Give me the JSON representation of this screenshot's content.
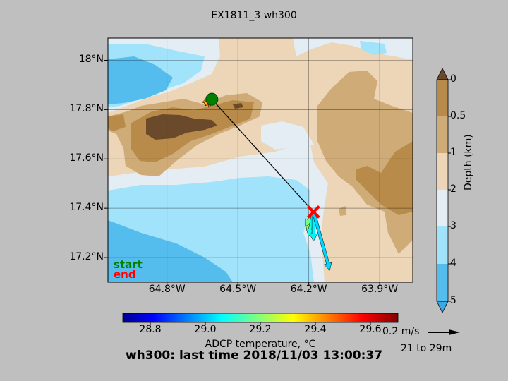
{
  "title": "EX1811_3 wh300",
  "footer": "wh300: last time 2018/11/03 13:00:37",
  "legend": {
    "start": "start",
    "end": "end",
    "start_color": "#008000",
    "end_color": "#ff0000"
  },
  "scale_arrow": {
    "label": "0.2 m/s",
    "depth_range": "21 to 29m"
  },
  "map": {
    "xlim": [
      -65.05,
      -63.76
    ],
    "ylim": [
      17.1,
      18.09
    ],
    "x_ticks": [
      {
        "value": -64.8,
        "label": "64.8°W"
      },
      {
        "value": -64.5,
        "label": "64.5°W"
      },
      {
        "value": -64.2,
        "label": "64.2°W"
      },
      {
        "value": -63.9,
        "label": "63.9°W"
      }
    ],
    "y_ticks": [
      {
        "value": 17.2,
        "label": "17.2°N"
      },
      {
        "value": 17.4,
        "label": "17.4°N"
      },
      {
        "value": 17.6,
        "label": "17.6°N"
      },
      {
        "value": 17.8,
        "label": "17.8°N"
      },
      {
        "value": 18.0,
        "label": "18°N"
      }
    ],
    "grid": true
  },
  "depth_colorbar": {
    "title": "Depth (km)",
    "ticks": [
      "0",
      "0.5",
      "1",
      "2",
      "3",
      "4",
      "5"
    ],
    "colors": [
      "#6b4a2b",
      "#b98b4a",
      "#cfab77",
      "#edd5b8",
      "#e3edf3",
      "#a0e3fa",
      "#54bdee",
      "#3aa9e3"
    ]
  },
  "temp_colorbar": {
    "title": "ADCP temperature, °C",
    "range": [
      28.7,
      29.7
    ],
    "ticks": [
      "28.8",
      "29.0",
      "29.2",
      "29.4",
      "29.6"
    ]
  },
  "chart_data": {
    "type": "scatter",
    "title": "EX1811_3 wh300",
    "xlabel": "",
    "ylabel": "",
    "track": {
      "start": {
        "lon": -64.61,
        "lat": 17.842
      },
      "end": {
        "lon": -64.18,
        "lat": 17.385
      }
    },
    "vectors": [
      {
        "lon": -64.61,
        "lat": 17.842,
        "u": -0.06,
        "v": -0.02,
        "temp": 29.42
      },
      {
        "lon": -64.61,
        "lat": 17.842,
        "u": -0.04,
        "v": -0.04,
        "temp": 29.45
      },
      {
        "lon": -64.61,
        "lat": 17.842,
        "u": -0.02,
        "v": -0.05,
        "temp": 29.48
      },
      {
        "lon": -64.61,
        "lat": 17.842,
        "u": -0.05,
        "v": -0.03,
        "temp": 29.38
      },
      {
        "lon": -64.18,
        "lat": 17.385,
        "u": -0.04,
        "v": -0.12,
        "temp": 29.22
      },
      {
        "lon": -64.18,
        "lat": 17.385,
        "u": -0.05,
        "v": -0.09,
        "temp": 29.18
      },
      {
        "lon": -64.18,
        "lat": 17.385,
        "u": -0.03,
        "v": -0.15,
        "temp": 29.08
      },
      {
        "lon": -64.18,
        "lat": 17.385,
        "u": 0.0,
        "v": -0.18,
        "temp": 29.05
      },
      {
        "lon": -64.18,
        "lat": 17.385,
        "u": 0.1,
        "v": -0.36,
        "temp": 29.02
      }
    ]
  }
}
